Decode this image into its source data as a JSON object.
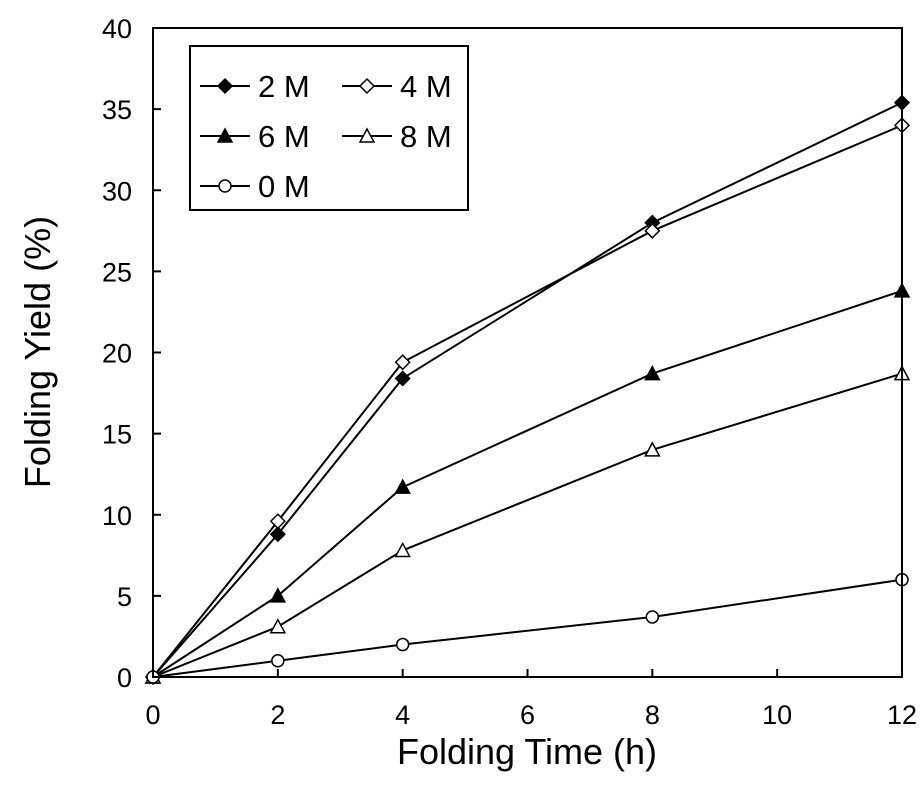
{
  "chart_data": {
    "type": "line",
    "title": "",
    "xlabel": "Folding Time (h)",
    "ylabel": "Folding Yield (%)",
    "xlim": [
      0,
      12
    ],
    "ylim": [
      0,
      40
    ],
    "x_ticks": [
      "0",
      "2",
      "4",
      "6",
      "8",
      "10",
      "12"
    ],
    "y_ticks": [
      "0",
      "5",
      "10",
      "15",
      "20",
      "25",
      "30",
      "35",
      "40"
    ],
    "grid": false,
    "legend_position": "top-left",
    "x": [
      0,
      2,
      4,
      8,
      12
    ],
    "series": [
      {
        "name": "2 M",
        "marker": "filled-diamond",
        "values": [
          0,
          8.8,
          18.4,
          28.0,
          35.4
        ]
      },
      {
        "name": "4 M",
        "marker": "open-diamond",
        "values": [
          0,
          9.6,
          19.4,
          27.5,
          34.0
        ]
      },
      {
        "name": "6 M",
        "marker": "filled-triangle",
        "values": [
          0,
          5.0,
          11.7,
          18.7,
          23.8
        ]
      },
      {
        "name": "8 M",
        "marker": "open-triangle",
        "values": [
          0,
          3.1,
          7.8,
          14.0,
          18.7
        ]
      },
      {
        "name": "0 M",
        "marker": "open-circle",
        "values": [
          0,
          1.0,
          2.0,
          3.7,
          6.0
        ]
      }
    ],
    "colors": {
      "line": "#000000",
      "background": "#ffffff"
    }
  }
}
